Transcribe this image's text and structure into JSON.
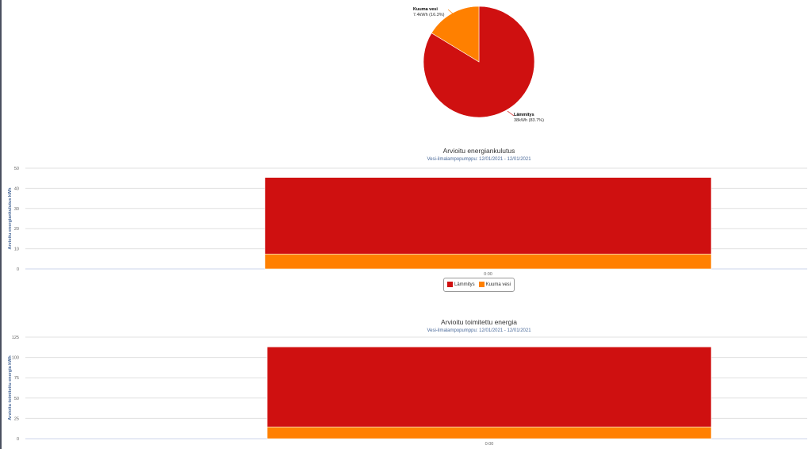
{
  "chart_data": [
    {
      "type": "pie",
      "slices": [
        {
          "name": "Lämmitys",
          "value": 38,
          "unit": "kWh",
          "percent": 83.7,
          "label": "38kWh (83.7%)",
          "color": "#cf1010"
        },
        {
          "name": "Kuuma vesi",
          "value": 7.4,
          "unit": "kWh",
          "percent": 16.3,
          "label": "7.4kWh (16.3%)",
          "color": "#ff8000"
        }
      ]
    },
    {
      "type": "bar",
      "stacked": true,
      "title": "Arvioitu energiankulutus",
      "subtitle": "Vesi-ilmalampopumppu: 12/01/2021 - 12/01/2021",
      "ylabel": "Arvioitu energiankulutus kWh",
      "ylim": [
        0,
        50
      ],
      "yticks": [
        0,
        10,
        20,
        30,
        40,
        50
      ],
      "categories": [
        "0:00"
      ],
      "series": [
        {
          "name": "Lämmitys",
          "values": [
            38
          ],
          "color": "#cf1010"
        },
        {
          "name": "Kuuma vesi",
          "values": [
            7.4
          ],
          "color": "#ff8000"
        }
      ],
      "legend": "bottom-center"
    },
    {
      "type": "bar",
      "stacked": true,
      "title": "Arvioitu toimitettu energia",
      "subtitle": "Vesi-ilmalampopumppu: 12/01/2021 - 12/01/2021",
      "ylabel": "Arvioitu toimitettu energia kWh",
      "ylim": [
        0,
        125
      ],
      "yticks": [
        0,
        25,
        50,
        75,
        100,
        125
      ],
      "categories": [
        "0:00"
      ],
      "series": [
        {
          "name": "Lämmitys",
          "values": [
            98.5
          ],
          "color": "#cf1010"
        },
        {
          "name": "Kuuma vesi",
          "values": [
            14.5
          ],
          "color": "#ff8000"
        }
      ]
    }
  ]
}
